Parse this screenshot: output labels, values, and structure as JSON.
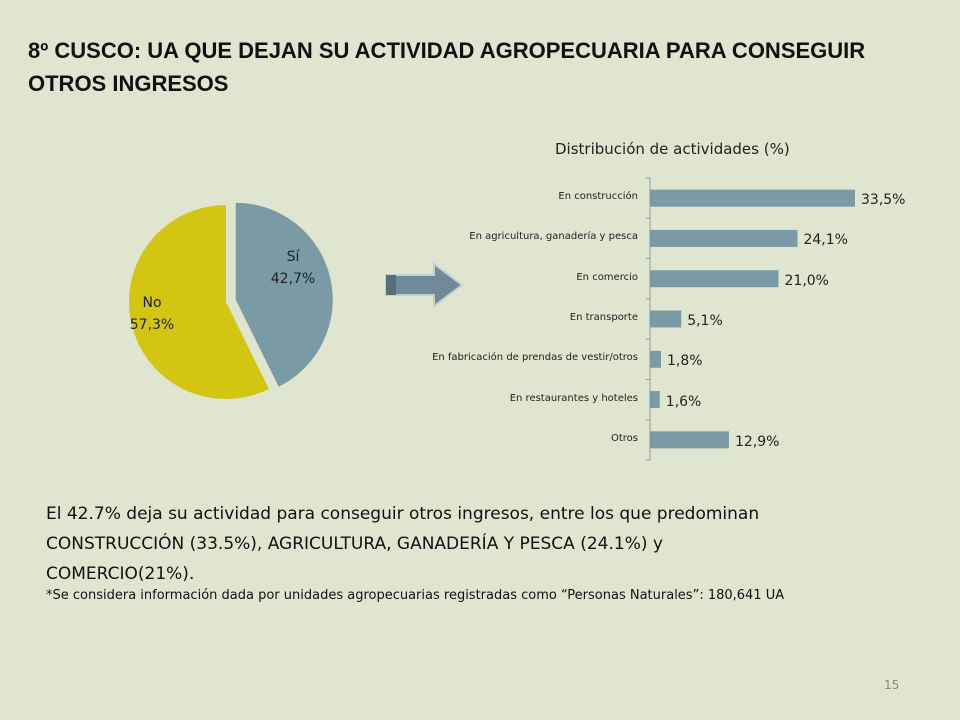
{
  "title": {
    "line1": "8º CUSCO:  UA  QUE DEJAN SU ACTIVIDAD AGROPECUARIA PARA CONSEGUIR",
    "line2": "OTROS INGRESOS"
  },
  "pie_chart": {
    "type": "pie",
    "slices": [
      {
        "name": "Sí",
        "value_label": "42,7%",
        "value": 42.7,
        "color": "#7a9aa6"
      },
      {
        "name": "No",
        "value_label": "57,3%",
        "value": 57.3,
        "color": "#d2c612"
      }
    ]
  },
  "chart_data": {
    "type": "bar",
    "orientation": "horizontal",
    "title": "Distribución de actividades (%)",
    "categories": [
      "En construcción",
      "En agricultura, ganadería y pesca",
      "En comercio",
      "En transporte",
      "En fabricación de prendas de vestir/otros",
      "En restaurantes y hoteles",
      "Otros"
    ],
    "values": [
      33.5,
      24.1,
      21.0,
      5.1,
      1.8,
      1.6,
      12.9
    ],
    "value_labels": [
      "33,5%",
      "24,1%",
      "21,0%",
      "5,1%",
      "1,8%",
      "1,6%",
      "12,9%"
    ],
    "bar_color": "#7a9aa6",
    "grid": false
  },
  "body": {
    "line1": "El 42.7% deja su actividad para conseguir otros ingresos, entre los que predominan",
    "line2": "CONSTRUCCIÓN (33.5%), AGRICULTURA, GANADERÍA Y PESCA (24.1%) y",
    "line3": "COMERCIO(21%).",
    "note": "*Se considera información dada por unidades agropecuarias registradas como “Personas Naturales”: 180,641 UA"
  },
  "page_number": "15"
}
